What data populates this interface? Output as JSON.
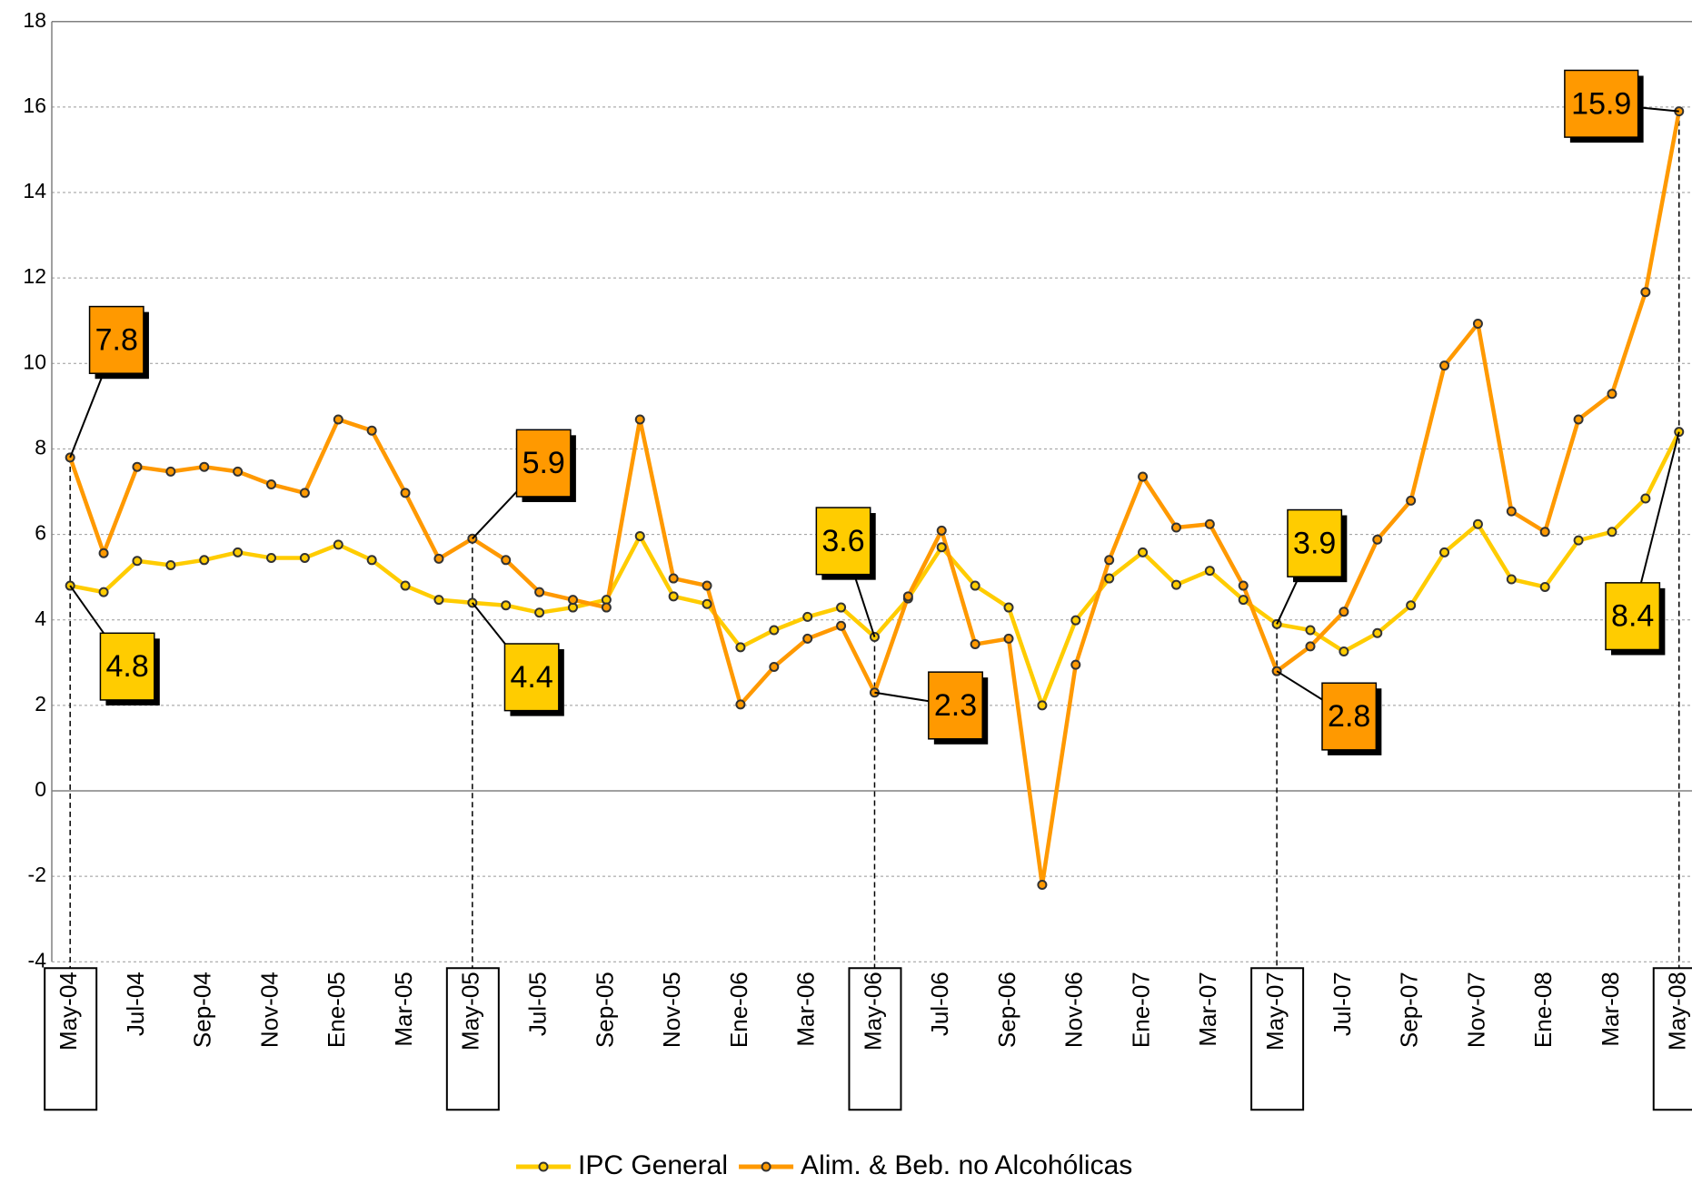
{
  "chart_data": {
    "type": "line",
    "categories": [
      "May-04",
      null,
      "Jul-04",
      null,
      "Sep-04",
      null,
      "Nov-04",
      null,
      "Ene-05",
      null,
      "Mar-05",
      null,
      "May-05",
      null,
      "Jul-05",
      null,
      "Sep-05",
      null,
      "Nov-05",
      null,
      "Ene-06",
      null,
      "Mar-06",
      null,
      "May-06",
      null,
      "Jul-06",
      null,
      "Sep-06",
      null,
      "Nov-06",
      null,
      "Ene-07",
      null,
      "Mar-07",
      null,
      "May-07",
      null,
      "Jul-07",
      null,
      "Sep-07",
      null,
      "Nov-07",
      null,
      "Ene-08",
      null,
      "Mar-08",
      null,
      "May-08"
    ],
    "series": [
      {
        "name": "IPC General",
        "color": "#FFCC00",
        "values": [
          4.8,
          4.65,
          5.38,
          5.28,
          5.4,
          5.58,
          5.45,
          5.45,
          5.76,
          5.4,
          4.8,
          4.47,
          4.4,
          4.34,
          4.17,
          4.29,
          4.47,
          5.96,
          4.55,
          4.37,
          3.36,
          3.76,
          4.07,
          4.29,
          3.6,
          4.5,
          5.7,
          4.8,
          4.29,
          2.0,
          3.99,
          4.97,
          5.58,
          4.82,
          5.15,
          4.47,
          3.9,
          3.76,
          3.26,
          3.69,
          4.34,
          5.58,
          6.24,
          4.95,
          4.77,
          5.86,
          6.06,
          6.84,
          8.4
        ],
        "value_labels": [
          "4.8",
          null,
          null,
          null,
          null,
          null,
          null,
          null,
          null,
          null,
          null,
          null,
          "4.4",
          null,
          null,
          null,
          null,
          null,
          null,
          null,
          null,
          null,
          null,
          null,
          "3.6",
          null,
          null,
          null,
          null,
          null,
          null,
          null,
          null,
          null,
          null,
          null,
          "3.9",
          null,
          null,
          null,
          null,
          null,
          null,
          null,
          null,
          null,
          null,
          null,
          "8.4"
        ]
      },
      {
        "name": "Alim. & Beb. no Alcohólicas",
        "color": "#FF9900",
        "values": [
          7.8,
          5.56,
          7.58,
          7.47,
          7.58,
          7.47,
          7.17,
          6.97,
          8.69,
          8.43,
          6.97,
          5.43,
          5.9,
          5.4,
          4.65,
          4.47,
          4.29,
          8.69,
          4.97,
          4.8,
          2.02,
          2.9,
          3.56,
          3.86,
          2.3,
          4.55,
          6.09,
          3.43,
          3.56,
          -2.2,
          2.95,
          5.4,
          7.35,
          6.16,
          6.24,
          4.8,
          2.8,
          3.38,
          4.19,
          5.88,
          6.79,
          9.95,
          10.93,
          6.54,
          6.06,
          8.69,
          9.29,
          11.67,
          15.9
        ],
        "value_labels": [
          "7.8",
          null,
          null,
          null,
          null,
          null,
          null,
          null,
          null,
          null,
          null,
          null,
          "5.9",
          null,
          null,
          null,
          null,
          null,
          null,
          null,
          null,
          null,
          null,
          null,
          "2.3",
          null,
          null,
          null,
          null,
          null,
          null,
          null,
          null,
          null,
          null,
          null,
          "2.8",
          null,
          null,
          null,
          null,
          null,
          null,
          null,
          null,
          null,
          null,
          null,
          "15.9"
        ]
      }
    ],
    "ylim": [
      -4,
      18
    ],
    "yticks": [
      -4,
      -2,
      0,
      2,
      4,
      6,
      8,
      10,
      12,
      14,
      16,
      18
    ],
    "grid": true,
    "legend": "bottom"
  }
}
